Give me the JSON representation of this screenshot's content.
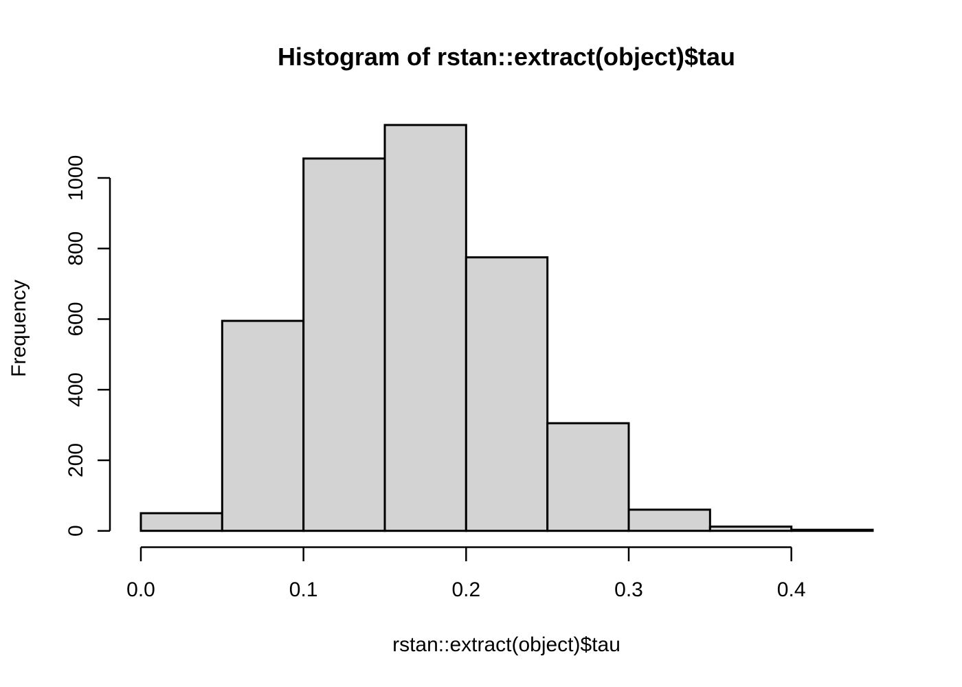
{
  "chart_data": {
    "type": "bar",
    "subtype": "histogram",
    "title": "Histogram of rstan::extract(object)$tau",
    "xlabel": "rstan::extract(object)$tau",
    "ylabel": "Frequency",
    "bin_edges": [
      0.0,
      0.05,
      0.1,
      0.15,
      0.2,
      0.25,
      0.3,
      0.35,
      0.4,
      0.45
    ],
    "counts": [
      50,
      595,
      1055,
      1150,
      775,
      305,
      60,
      12,
      3
    ],
    "x_ticks": {
      "values": [
        0.0,
        0.1,
        0.2,
        0.3,
        0.4
      ],
      "labels": [
        "0.0",
        "0.1",
        "0.2",
        "0.3",
        "0.4"
      ]
    },
    "y_ticks": {
      "values": [
        0,
        200,
        400,
        600,
        800,
        1000
      ],
      "labels": [
        "0",
        "200",
        "400",
        "600",
        "800",
        "1000"
      ]
    },
    "xlim": [
      0,
      0.45
    ],
    "ylim": [
      0,
      1150
    ],
    "grid": false,
    "legend": "none",
    "colors": {
      "bar_fill": "#d3d3d3",
      "bar_border": "#000000",
      "axis": "#000000",
      "text": "#000000",
      "background": "#ffffff"
    }
  }
}
